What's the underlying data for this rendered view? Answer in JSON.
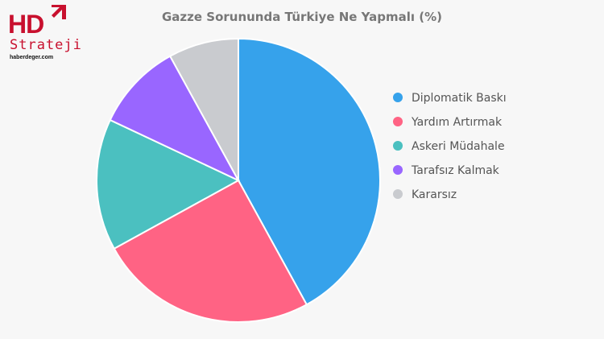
{
  "logo": {
    "main": "HD",
    "sub": "Strateji",
    "site": "haberdeger.com",
    "color": "#c8102e"
  },
  "chart_data": {
    "type": "pie",
    "title": "Gazze Sorununda Türkiye Ne Yapmalı (%)",
    "categories": [
      "Diplomatik Baskı",
      "Yardım Artırmak",
      "Askeri Müdahale",
      "Tarafsız Kalmak",
      "Kararsız"
    ],
    "values": [
      42,
      25,
      15,
      10,
      8
    ],
    "colors": [
      "#36a2eb",
      "#ff6384",
      "#4bc0c0",
      "#9966ff",
      "#c9cbcf"
    ],
    "legend": "right"
  }
}
